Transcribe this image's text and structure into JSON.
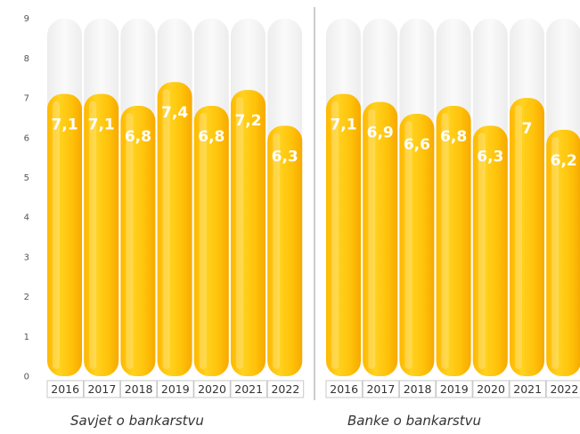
{
  "chart_data": [
    {
      "type": "bar",
      "title": "Savjet o bankarstvu",
      "categories": [
        "2016",
        "2017",
        "2018",
        "2019",
        "2020",
        "2021",
        "2022"
      ],
      "values": [
        7.1,
        7.1,
        6.8,
        7.4,
        6.8,
        7.2,
        6.3
      ],
      "value_labels": [
        "7,1",
        "7,1",
        "6,8",
        "7,4",
        "6,8",
        "7,2",
        "6,3"
      ],
      "ylim": [
        0,
        9
      ],
      "yticks": [
        0,
        1,
        2,
        3,
        4,
        5,
        6,
        7,
        8,
        9
      ],
      "grid": false,
      "legend": "none"
    },
    {
      "type": "bar",
      "title": "Banke o bankarstvu",
      "categories": [
        "2016",
        "2017",
        "2018",
        "2019",
        "2020",
        "2021",
        "2022"
      ],
      "values": [
        7.1,
        6.9,
        6.6,
        6.8,
        6.3,
        7.0,
        6.2
      ],
      "value_labels": [
        "7,1",
        "6,9",
        "6,6",
        "6,8",
        "6,3",
        "7",
        "6,2"
      ],
      "ylim": [
        0,
        9
      ],
      "yticks": [
        0,
        1,
        2,
        3,
        4,
        5,
        6,
        7,
        8,
        9
      ],
      "grid": false,
      "legend": "none"
    }
  ],
  "colors": {
    "bar_top": "#FFD21F",
    "bar_mid": "#FFC30A",
    "bar_bottom": "#F7A900",
    "track": "#F3F3F3",
    "value_label": "#FFFFFF",
    "divider": "#9A9A9A"
  }
}
